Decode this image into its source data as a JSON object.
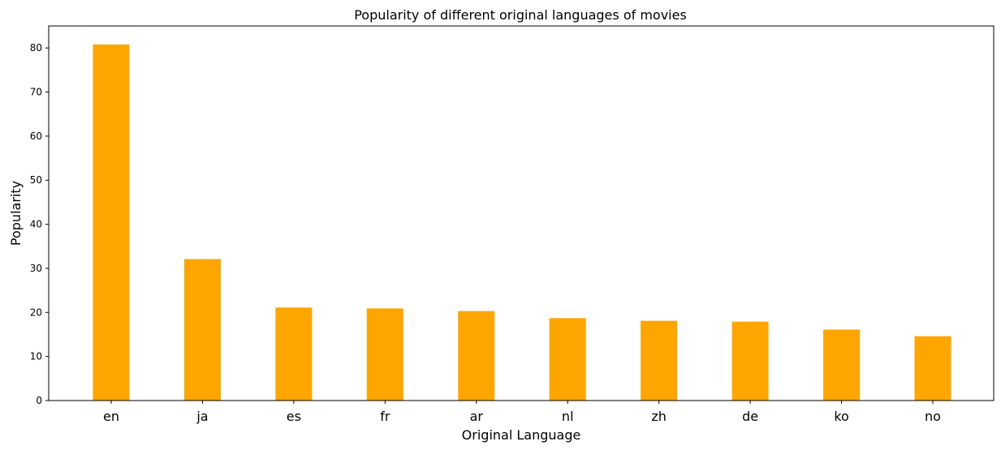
{
  "chart_data": {
    "type": "bar",
    "title": "Popularity of different original languages of movies",
    "xlabel": "Original Language",
    "ylabel": "Popularity",
    "categories": [
      "en",
      "ja",
      "es",
      "fr",
      "ar",
      "nl",
      "zh",
      "de",
      "ko",
      "no"
    ],
    "values": [
      80.8,
      32.1,
      21.1,
      20.9,
      20.3,
      18.7,
      18.1,
      17.9,
      16.1,
      14.6
    ],
    "ylim": [
      0,
      85
    ],
    "yticks": [
      0,
      10,
      20,
      30,
      40,
      50,
      60,
      70,
      80
    ],
    "bar_color": "#FFA500",
    "grid": false,
    "legend": "none"
  }
}
